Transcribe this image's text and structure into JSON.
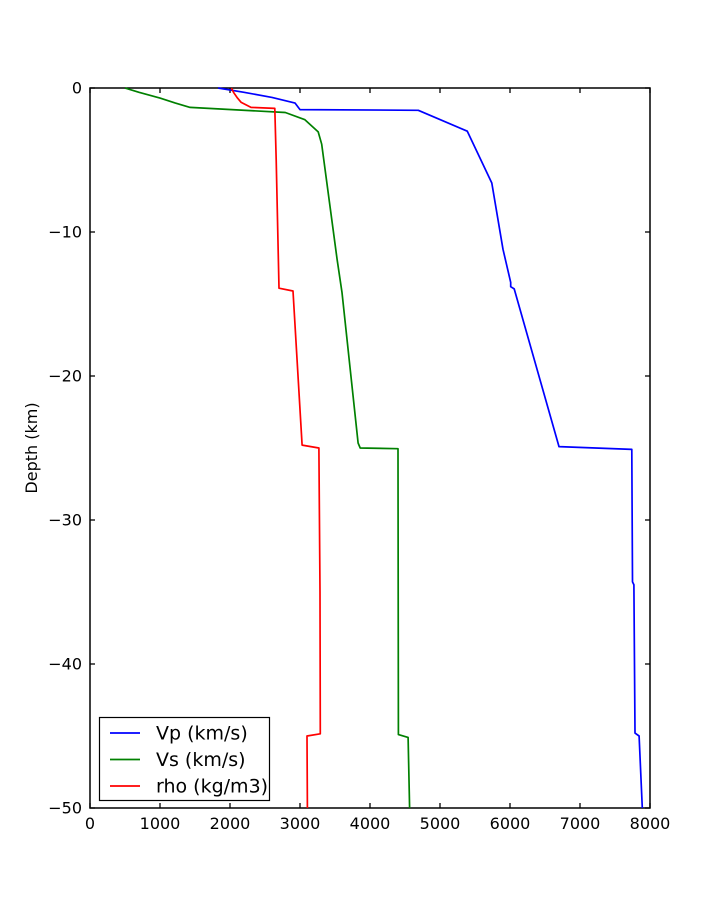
{
  "chart_data": {
    "type": "line",
    "title": "",
    "xlabel": "",
    "ylabel": "Depth (km)",
    "xlim": [
      0,
      8000
    ],
    "ylim": [
      -50,
      0
    ],
    "grid": false,
    "background_color": "#ffffff",
    "axis_color": "#000000",
    "legend_position": "lower left",
    "x_ticks": {
      "values": [
        0,
        1000,
        2000,
        3000,
        4000,
        5000,
        6000,
        7000,
        8000
      ],
      "labels": [
        "0",
        "1000",
        "2000",
        "3000",
        "4000",
        "5000",
        "6000",
        "7000",
        "8000"
      ]
    },
    "y_ticks": {
      "values": [
        0,
        -10,
        -20,
        -30,
        -40,
        -50
      ],
      "labels": [
        "0",
        "−10",
        "−20",
        "−30",
        "−40",
        "−50"
      ]
    },
    "series": [
      {
        "id": "vp",
        "name": "Vp (km/s)",
        "color": "#0000ff",
        "points": [
          [
            1830,
            0
          ],
          [
            2200,
            -0.3
          ],
          [
            2600,
            -0.65
          ],
          [
            2930,
            -1.05
          ],
          [
            3000,
            -1.5
          ],
          [
            4690,
            -1.55
          ],
          [
            5390,
            -3.0
          ],
          [
            5740,
            -6.6
          ],
          [
            5900,
            -11.2
          ],
          [
            6010,
            -13.5
          ],
          [
            6010,
            -13.8
          ],
          [
            6060,
            -13.95
          ],
          [
            6700,
            -24.9
          ],
          [
            7740,
            -25.1
          ],
          [
            7750,
            -34.3
          ],
          [
            7770,
            -34.5
          ],
          [
            7785,
            -44.8
          ],
          [
            7845,
            -45.0
          ],
          [
            7890,
            -50
          ]
        ]
      },
      {
        "id": "vs",
        "name": "Vs (km/s)",
        "color": "#008000",
        "points": [
          [
            500,
            0
          ],
          [
            700,
            -0.3
          ],
          [
            1000,
            -0.7
          ],
          [
            1220,
            -1.05
          ],
          [
            1430,
            -1.35
          ],
          [
            2790,
            -1.7
          ],
          [
            3070,
            -2.2
          ],
          [
            3260,
            -3.05
          ],
          [
            3310,
            -3.9
          ],
          [
            3530,
            -11.9
          ],
          [
            3600,
            -14.2
          ],
          [
            3830,
            -24.65
          ],
          [
            3860,
            -25.0
          ],
          [
            4400,
            -25.05
          ],
          [
            4405,
            -44.9
          ],
          [
            4545,
            -45.1
          ],
          [
            4565,
            -50
          ]
        ]
      },
      {
        "id": "rho",
        "name": "rho (kg/m3)",
        "color": "#ff0000",
        "points": [
          [
            2020,
            0
          ],
          [
            2050,
            -0.3
          ],
          [
            2100,
            -0.65
          ],
          [
            2160,
            -1.0
          ],
          [
            2300,
            -1.35
          ],
          [
            2640,
            -1.42
          ],
          [
            2660,
            -5
          ],
          [
            2700,
            -13.9
          ],
          [
            2900,
            -14.1
          ],
          [
            3030,
            -24.8
          ],
          [
            3270,
            -25.0
          ],
          [
            3285,
            -35
          ],
          [
            3290,
            -44.85
          ],
          [
            3100,
            -45.0
          ],
          [
            3105,
            -50
          ]
        ]
      }
    ]
  }
}
